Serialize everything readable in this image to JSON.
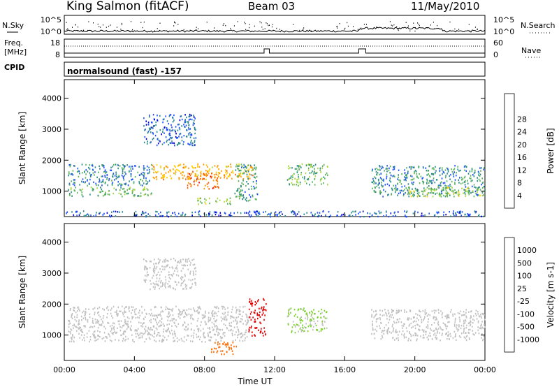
{
  "header": {
    "station": "King Salmon (fitACF)",
    "beam": "Beam 03",
    "date": "11/May/2010"
  },
  "panels": {
    "nsky_label": "N.Sky",
    "nsearch_label": "N.Search",
    "freq_label_1": "Freq.",
    "freq_label_2": "[MHz]",
    "nave_label": "Nave",
    "cpid_label": "CPID",
    "cpid_text": "normalsound (fast) -157",
    "noise_ticks": [
      "10^5",
      "10^0"
    ],
    "freq_ticks": [
      "18",
      "8"
    ],
    "nave_ticks": [
      "60",
      "0"
    ]
  },
  "chart_data": [
    {
      "type": "heatmap",
      "title": "",
      "xlabel": "Time UT",
      "ylabel": "Slant Range [km]",
      "xlim": [
        0,
        24
      ],
      "ylim": [
        180,
        4600
      ],
      "x_ticks": [
        "00:00",
        "04:00",
        "08:00",
        "12:00",
        "16:00",
        "20:00",
        "00:00"
      ],
      "y_ticks": [
        1000,
        2000,
        3000,
        4000
      ],
      "colorbar": {
        "label": "Power [dB]",
        "ticks": [
          "4",
          "8",
          "12",
          "16",
          "20",
          "24",
          "28"
        ],
        "range": [
          0,
          30
        ],
        "colors": [
          "#0000d0",
          "#1e50ff",
          "#2a8a8a",
          "#5bb35b",
          "#a8d63c",
          "#ffd000",
          "#ff9a00",
          "#ff5a00",
          "#e00000"
        ]
      },
      "echo_regions": [
        {
          "t": [
            0.2,
            5.0
          ],
          "range": [
            1200,
            1900
          ],
          "level": 8
        },
        {
          "t": [
            0.2,
            5.0
          ],
          "range": [
            850,
            1150
          ],
          "level": 12
        },
        {
          "t": [
            5.0,
            10.8
          ],
          "range": [
            1400,
            1900
          ],
          "level": 20
        },
        {
          "t": [
            7.0,
            8.8
          ],
          "range": [
            1100,
            1600
          ],
          "level": 24
        },
        {
          "t": [
            7.5,
            9.5
          ],
          "range": [
            600,
            800
          ],
          "level": 14
        },
        {
          "t": [
            4.5,
            7.5
          ],
          "range": [
            2500,
            3500
          ],
          "level": 6
        },
        {
          "t": [
            9.7,
            11.0
          ],
          "range": [
            700,
            1900
          ],
          "level": 10
        },
        {
          "t": [
            12.7,
            15.0
          ],
          "range": [
            1200,
            1900
          ],
          "level": 12
        },
        {
          "t": [
            17.5,
            24.0
          ],
          "range": [
            850,
            1850
          ],
          "level": 9
        },
        {
          "t": [
            19.5,
            24.0
          ],
          "range": [
            850,
            1150
          ],
          "level": 14
        },
        {
          "t": [
            0.0,
            24.0
          ],
          "range": [
            200,
            380
          ],
          "level": 6
        }
      ]
    },
    {
      "type": "heatmap",
      "title": "",
      "xlabel": "Time UT",
      "ylabel": "Slant Range [km]",
      "xlim": [
        0,
        24
      ],
      "ylim": [
        180,
        4600
      ],
      "x_ticks": [
        "00:00",
        "04:00",
        "08:00",
        "12:00",
        "16:00",
        "20:00",
        "00:00"
      ],
      "y_ticks": [
        1000,
        2000,
        3000,
        4000
      ],
      "colorbar": {
        "label": "Velocity [m s-1]",
        "ticks": [
          "1000",
          "500",
          "100",
          "25",
          "-25",
          "-100",
          "-500",
          "-1000"
        ],
        "colors": [
          "#1a3fd0",
          "#3a6ef0",
          "#2e9a3a",
          "#7bd12b",
          "#c0c0c0",
          "#c0c0c0",
          "#ffb000",
          "#ff6a00",
          "#e00000"
        ]
      },
      "echo_regions": [
        {
          "t": [
            0.2,
            10.5
          ],
          "range": [
            800,
            1950
          ],
          "velocity": 0
        },
        {
          "t": [
            4.5,
            7.5
          ],
          "range": [
            2500,
            3500
          ],
          "velocity": 0
        },
        {
          "t": [
            8.3,
            9.8
          ],
          "range": [
            400,
            800
          ],
          "velocity": -500
        },
        {
          "t": [
            10.5,
            11.5
          ],
          "range": [
            1000,
            2200
          ],
          "velocity": -1000
        },
        {
          "t": [
            12.7,
            15.0
          ],
          "range": [
            1100,
            1900
          ],
          "velocity": 100
        },
        {
          "t": [
            17.5,
            24.0
          ],
          "range": [
            850,
            1850
          ],
          "velocity": 0
        }
      ]
    }
  ]
}
